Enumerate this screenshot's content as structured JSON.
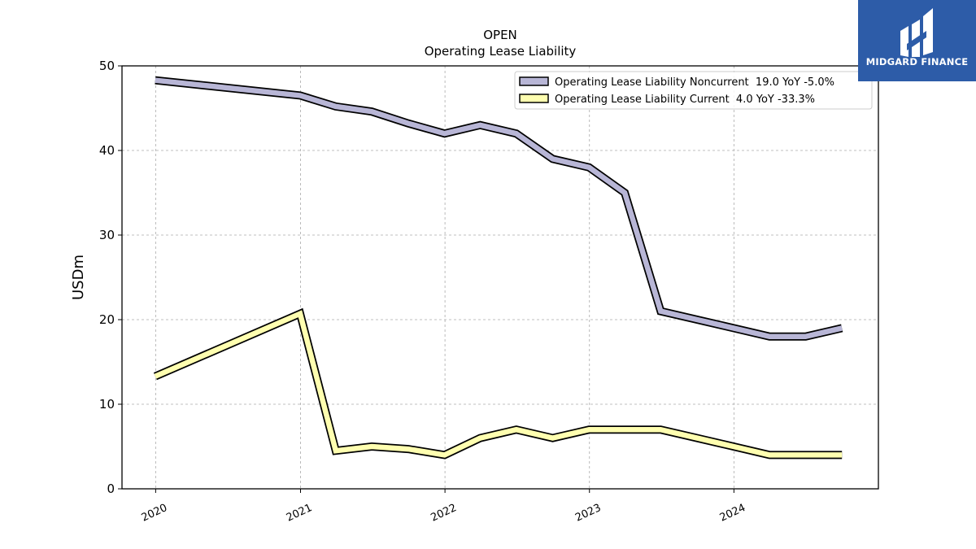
{
  "chart_data": {
    "type": "line",
    "title": "OPEN",
    "subtitle": "Operating Lease Liability",
    "xlabel": "",
    "ylabel": "USDm",
    "xlim": [
      "2019-10-08",
      "2024-12-31"
    ],
    "ylim": [
      0,
      50
    ],
    "yticks": [
      0,
      10,
      20,
      30,
      40,
      50
    ],
    "xticks": [
      {
        "date": "2020-01-01",
        "label": "2020"
      },
      {
        "date": "2021-01-01",
        "label": "2021"
      },
      {
        "date": "2022-01-01",
        "label": "2022"
      },
      {
        "date": "2023-01-01",
        "label": "2023"
      },
      {
        "date": "2024-01-01",
        "label": "2024"
      }
    ],
    "grid": true,
    "legend_position": "top-right",
    "series": [
      {
        "name": "Operating Lease Liability Noncurrent  19.0 YoY -5.0%",
        "color": "#b8b6d6",
        "x": [
          "2019-12-31",
          "2020-12-31",
          "2021-03-31",
          "2021-06-30",
          "2021-09-30",
          "2021-12-31",
          "2022-03-31",
          "2022-06-30",
          "2022-09-30",
          "2022-12-31",
          "2023-03-31",
          "2023-06-30",
          "2023-09-30",
          "2023-12-31",
          "2024-03-31",
          "2024-06-30",
          "2024-09-30"
        ],
        "y": [
          48.3,
          46.5,
          45.2,
          44.6,
          43.2,
          42.0,
          43.0,
          42.0,
          39.0,
          38.0,
          35.0,
          21.0,
          20.0,
          19.0,
          18.0,
          18.0,
          19.0
        ]
      },
      {
        "name": "Operating Lease Liability Current  4.0 YoY -33.3%",
        "color": "#ffffb0",
        "x": [
          "2019-12-31",
          "2020-12-31",
          "2021-03-31",
          "2021-06-30",
          "2021-09-30",
          "2021-12-31",
          "2022-03-31",
          "2022-06-30",
          "2022-09-30",
          "2022-12-31",
          "2023-03-31",
          "2023-06-30",
          "2023-09-30",
          "2023-12-31",
          "2024-03-31",
          "2024-06-30",
          "2024-09-30"
        ],
        "y": [
          13.3,
          20.7,
          4.5,
          5.0,
          4.7,
          4.0,
          6.0,
          7.0,
          6.0,
          7.0,
          7.0,
          7.0,
          6.0,
          5.0,
          4.0,
          4.0,
          4.0
        ]
      }
    ]
  },
  "watermark": {
    "brand": "MIDGARD FINANCE",
    "color": "#2d5ca8",
    "icon": "midgard-logo-icon"
  }
}
